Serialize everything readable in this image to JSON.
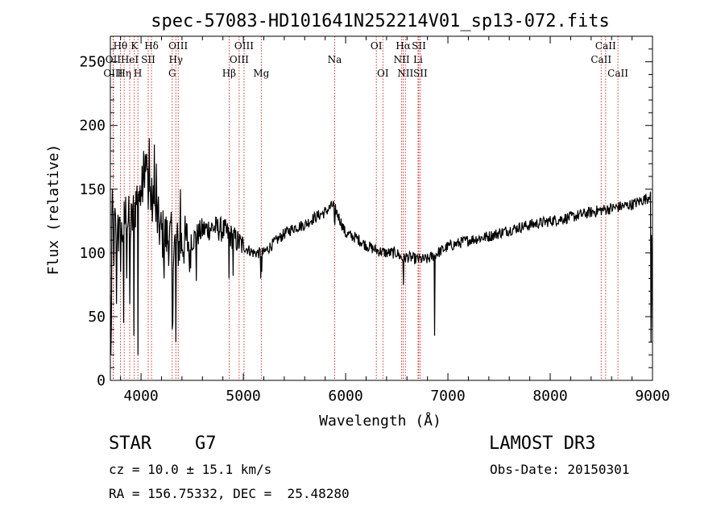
{
  "chart_data": {
    "type": "line",
    "title": "spec-57083-HD101641N252214V01_sp13-072.fits",
    "xlabel": "Wavelength (Å)",
    "ylabel": "Flux (relative)",
    "xlim": [
      3700,
      9000
    ],
    "ylim": [
      0,
      270
    ],
    "x_ticks": [
      4000,
      5000,
      6000,
      7000,
      8000,
      9000
    ],
    "y_ticks": [
      0,
      50,
      100,
      150,
      200,
      250
    ],
    "grid": false,
    "line_color": "#000000",
    "marker_color": "#cc0000",
    "spectrum_anchors": {
      "x": [
        3700,
        3720,
        3750,
        3800,
        3850,
        3900,
        3950,
        4000,
        4050,
        4100,
        4200,
        4300,
        4350,
        4400,
        4500,
        4600,
        4700,
        4800,
        4900,
        5000,
        5100,
        5200,
        5300,
        5400,
        5500,
        5600,
        5700,
        5800,
        5880,
        5950,
        6000,
        6100,
        6200,
        6300,
        6400,
        6500,
        6560,
        6600,
        6700,
        6800,
        6900,
        7000,
        7200,
        7400,
        7600,
        7800,
        8000,
        8200,
        8400,
        8600,
        8800,
        8950,
        8985,
        9000
      ],
      "y": [
        60,
        125,
        120,
        110,
        130,
        120,
        140,
        160,
        165,
        140,
        115,
        110,
        105,
        108,
        110,
        118,
        120,
        118,
        112,
        105,
        100,
        100,
        108,
        115,
        120,
        122,
        128,
        132,
        138,
        125,
        115,
        112,
        106,
        102,
        100,
        100,
        95,
        97,
        95,
        95,
        100,
        105,
        110,
        113,
        118,
        122,
        125,
        128,
        132,
        135,
        138,
        143,
        148,
        40
      ]
    },
    "spectrum_spikes": {
      "x": [
        3705,
        3712,
        3722,
        3735,
        3760,
        3775,
        3800,
        3830,
        3860,
        3890,
        3932,
        3968,
        3985,
        4025,
        4050,
        4080,
        4102,
        4130,
        4150,
        4227,
        4305,
        4310,
        4340,
        4383,
        4475,
        4540,
        4861,
        4900,
        5170,
        5180,
        5890,
        5896,
        6563,
        6870,
        8985
      ],
      "y": [
        20,
        45,
        150,
        90,
        60,
        130,
        85,
        45,
        80,
        60,
        35,
        20,
        140,
        180,
        175,
        190,
        140,
        185,
        170,
        80,
        40,
        45,
        30,
        150,
        85,
        78,
        80,
        82,
        80,
        85,
        125,
        122,
        75,
        35,
        30
      ]
    },
    "lines": [
      {
        "label": "Hθ",
        "wavelength": 3798,
        "row": 0
      },
      {
        "label": "OII",
        "wavelength": 3727,
        "row": 1
      },
      {
        "label": "OIII",
        "wavelength": 3727,
        "row": 2
      },
      {
        "label": "Hη",
        "wavelength": 3835,
        "row": 2
      },
      {
        "label": "HeI",
        "wavelength": 3889,
        "row": 1
      },
      {
        "label": "K",
        "wavelength": 3934,
        "row": 0
      },
      {
        "label": "H",
        "wavelength": 3969,
        "row": 2
      },
      {
        "label": "SII",
        "wavelength": 4070,
        "row": 1
      },
      {
        "label": "Hδ",
        "wavelength": 4102,
        "row": 0
      },
      {
        "label": "OIII",
        "wavelength": 4363,
        "row": 0
      },
      {
        "label": "Hγ",
        "wavelength": 4340,
        "row": 1
      },
      {
        "label": "G",
        "wavelength": 4305,
        "row": 2
      },
      {
        "label": "Hβ",
        "wavelength": 4861,
        "row": 2
      },
      {
        "label": "OIII",
        "wavelength": 5007,
        "row": 0
      },
      {
        "label": "OIII",
        "wavelength": 4959,
        "row": 1
      },
      {
        "label": "Mg",
        "wavelength": 5175,
        "row": 2
      },
      {
        "label": "Na",
        "wavelength": 5893,
        "row": 1
      },
      {
        "label": "OI",
        "wavelength": 6300,
        "row": 0
      },
      {
        "label": "OI",
        "wavelength": 6364,
        "row": 2
      },
      {
        "label": "Hα",
        "wavelength": 6563,
        "row": 0
      },
      {
        "label": "NII",
        "wavelength": 6548,
        "row": 1
      },
      {
        "label": "NII",
        "wavelength": 6584,
        "row": 2
      },
      {
        "label": "SII",
        "wavelength": 6716,
        "row": 0
      },
      {
        "label": "Li",
        "wavelength": 6708,
        "row": 1
      },
      {
        "label": "SII",
        "wavelength": 6731,
        "row": 2
      },
      {
        "label": "CaII",
        "wavelength": 8542,
        "row": 0
      },
      {
        "label": "CaII",
        "wavelength": 8498,
        "row": 1
      },
      {
        "label": "CaII",
        "wavelength": 8662,
        "row": 2
      }
    ]
  },
  "info": {
    "object_class": "STAR",
    "subclass": "G7",
    "survey": "LAMOST DR3",
    "redshift": "cz = 10.0 ± 15.1 km/s",
    "obs_date": "Obs-Date: 20150301",
    "coords": "RA = 156.75332, DEC =  25.48280"
  }
}
